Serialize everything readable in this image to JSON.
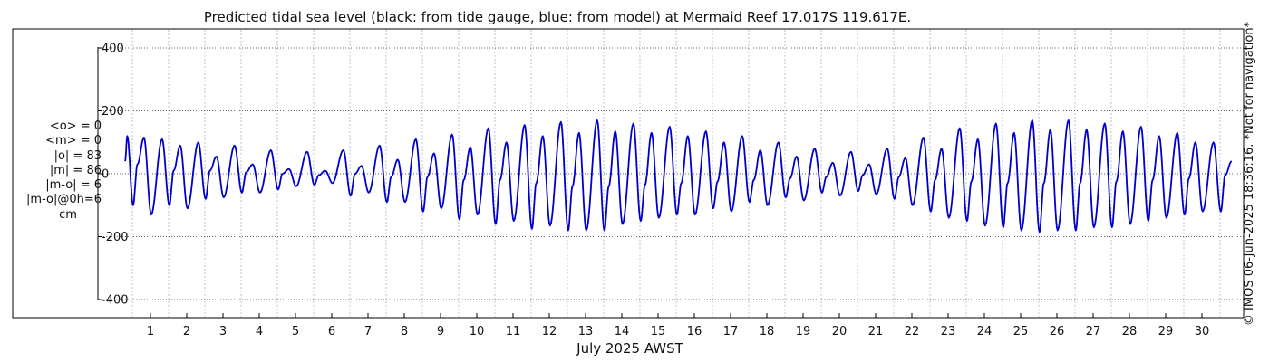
{
  "chart_data": {
    "type": "line",
    "title": "Predicted tidal sea level (black: from tide gauge, blue: from model) at Mermaid Reef 17.017S 119.617E.",
    "xlabel": "July 2025 AWST",
    "ylabel": "",
    "x_unit_note": "days of July 2025",
    "xlim": [
      0.18,
      31.9
    ],
    "ylim": [
      -420,
      420
    ],
    "yticks": [
      -400,
      -200,
      0,
      200,
      400
    ],
    "xticks": [
      1,
      2,
      3,
      4,
      5,
      6,
      7,
      8,
      9,
      10,
      11,
      12,
      13,
      14,
      15,
      16,
      17,
      18,
      19,
      20,
      21,
      22,
      23,
      24,
      25,
      26,
      27,
      28,
      29,
      30
    ],
    "grid": true,
    "series": [
      {
        "color": "#0000cc",
        "role": "model",
        "points": [
          [
            0.3,
            40
          ],
          [
            0.36,
            120
          ],
          [
            0.52,
            -100
          ],
          [
            0.64,
            30
          ],
          [
            0.82,
            115
          ],
          [
            1.02,
            -130
          ],
          [
            1.32,
            110
          ],
          [
            1.52,
            -100
          ],
          [
            1.64,
            10
          ],
          [
            1.82,
            90
          ],
          [
            2.02,
            -110
          ],
          [
            2.32,
            100
          ],
          [
            2.52,
            -80
          ],
          [
            2.64,
            10
          ],
          [
            2.82,
            55
          ],
          [
            3.02,
            -75
          ],
          [
            3.32,
            90
          ],
          [
            3.52,
            -60
          ],
          [
            3.64,
            5
          ],
          [
            3.82,
            30
          ],
          [
            4.02,
            -60
          ],
          [
            4.32,
            75
          ],
          [
            4.52,
            -50
          ],
          [
            4.64,
            0
          ],
          [
            4.82,
            15
          ],
          [
            5.02,
            -40
          ],
          [
            5.32,
            70
          ],
          [
            5.52,
            -35
          ],
          [
            5.64,
            -5
          ],
          [
            5.82,
            10
          ],
          [
            6.02,
            -30
          ],
          [
            6.32,
            75
          ],
          [
            6.52,
            -70
          ],
          [
            6.64,
            0
          ],
          [
            6.82,
            25
          ],
          [
            7.02,
            -60
          ],
          [
            7.32,
            90
          ],
          [
            7.52,
            -90
          ],
          [
            7.64,
            -10
          ],
          [
            7.82,
            45
          ],
          [
            8.02,
            -90
          ],
          [
            8.32,
            110
          ],
          [
            8.52,
            -120
          ],
          [
            8.64,
            -10
          ],
          [
            8.82,
            65
          ],
          [
            9.02,
            -110
          ],
          [
            9.32,
            125
          ],
          [
            9.52,
            -145
          ],
          [
            9.64,
            -20
          ],
          [
            9.82,
            85
          ],
          [
            10.02,
            -130
          ],
          [
            10.32,
            145
          ],
          [
            10.52,
            -160
          ],
          [
            10.64,
            -20
          ],
          [
            10.82,
            100
          ],
          [
            11.02,
            -150
          ],
          [
            11.32,
            155
          ],
          [
            11.52,
            -175
          ],
          [
            11.64,
            -30
          ],
          [
            11.82,
            120
          ],
          [
            12.02,
            -165
          ],
          [
            12.32,
            165
          ],
          [
            12.52,
            -180
          ],
          [
            12.64,
            -40
          ],
          [
            12.82,
            130
          ],
          [
            13.02,
            -180
          ],
          [
            13.32,
            170
          ],
          [
            13.52,
            -180
          ],
          [
            13.64,
            -40
          ],
          [
            13.82,
            135
          ],
          [
            14.02,
            -160
          ],
          [
            14.32,
            160
          ],
          [
            14.52,
            -150
          ],
          [
            14.64,
            -35
          ],
          [
            14.82,
            130
          ],
          [
            15.02,
            -140
          ],
          [
            15.32,
            150
          ],
          [
            15.52,
            -130
          ],
          [
            15.64,
            -30
          ],
          [
            15.82,
            120
          ],
          [
            16.02,
            -130
          ],
          [
            16.32,
            135
          ],
          [
            16.52,
            -110
          ],
          [
            16.64,
            -25
          ],
          [
            16.82,
            100
          ],
          [
            17.02,
            -120
          ],
          [
            17.32,
            120
          ],
          [
            17.52,
            -90
          ],
          [
            17.64,
            -20
          ],
          [
            17.82,
            75
          ],
          [
            18.02,
            -100
          ],
          [
            18.32,
            100
          ],
          [
            18.52,
            -75
          ],
          [
            18.64,
            -15
          ],
          [
            18.82,
            55
          ],
          [
            19.02,
            -85
          ],
          [
            19.32,
            80
          ],
          [
            19.52,
            -60
          ],
          [
            19.64,
            -10
          ],
          [
            19.82,
            35
          ],
          [
            20.02,
            -70
          ],
          [
            20.32,
            70
          ],
          [
            20.52,
            -55
          ],
          [
            20.64,
            -5
          ],
          [
            20.82,
            30
          ],
          [
            21.02,
            -65
          ],
          [
            21.32,
            80
          ],
          [
            21.52,
            -80
          ],
          [
            21.64,
            -10
          ],
          [
            21.82,
            50
          ],
          [
            22.02,
            -100
          ],
          [
            22.32,
            115
          ],
          [
            22.52,
            -120
          ],
          [
            22.64,
            -20
          ],
          [
            22.82,
            80
          ],
          [
            23.02,
            -140
          ],
          [
            23.32,
            145
          ],
          [
            23.52,
            -150
          ],
          [
            23.64,
            -25
          ],
          [
            23.82,
            110
          ],
          [
            24.02,
            -165
          ],
          [
            24.32,
            160
          ],
          [
            24.52,
            -170
          ],
          [
            24.64,
            -30
          ],
          [
            24.82,
            130
          ],
          [
            25.02,
            -180
          ],
          [
            25.32,
            170
          ],
          [
            25.52,
            -185
          ],
          [
            25.64,
            -30
          ],
          [
            25.82,
            140
          ],
          [
            26.02,
            -180
          ],
          [
            26.32,
            170
          ],
          [
            26.52,
            -180
          ],
          [
            26.64,
            -30
          ],
          [
            26.82,
            140
          ],
          [
            27.02,
            -170
          ],
          [
            27.32,
            160
          ],
          [
            27.52,
            -170
          ],
          [
            27.64,
            -25
          ],
          [
            27.82,
            135
          ],
          [
            28.02,
            -160
          ],
          [
            28.32,
            150
          ],
          [
            28.52,
            -150
          ],
          [
            28.64,
            -20
          ],
          [
            28.82,
            120
          ],
          [
            29.02,
            -140
          ],
          [
            29.32,
            130
          ],
          [
            29.52,
            -130
          ],
          [
            29.64,
            -15
          ],
          [
            29.82,
            100
          ],
          [
            30.02,
            -120
          ],
          [
            30.32,
            100
          ],
          [
            30.52,
            -120
          ],
          [
            30.64,
            -5
          ],
          [
            30.82,
            40
          ]
        ]
      }
    ]
  },
  "stats": {
    "mean_obs": "<o> = 0",
    "mean_model": "<m> = 0",
    "abs_obs": "|o| = 83",
    "abs_model": "|m| = 86",
    "abs_diff": "|m-o| = 6",
    "abs_diff_0h": "|m-o|@0h=6",
    "unit": "cm"
  },
  "credit": "© IMOS 06-Jun-2025 18:36:16. *Not for navigation*"
}
